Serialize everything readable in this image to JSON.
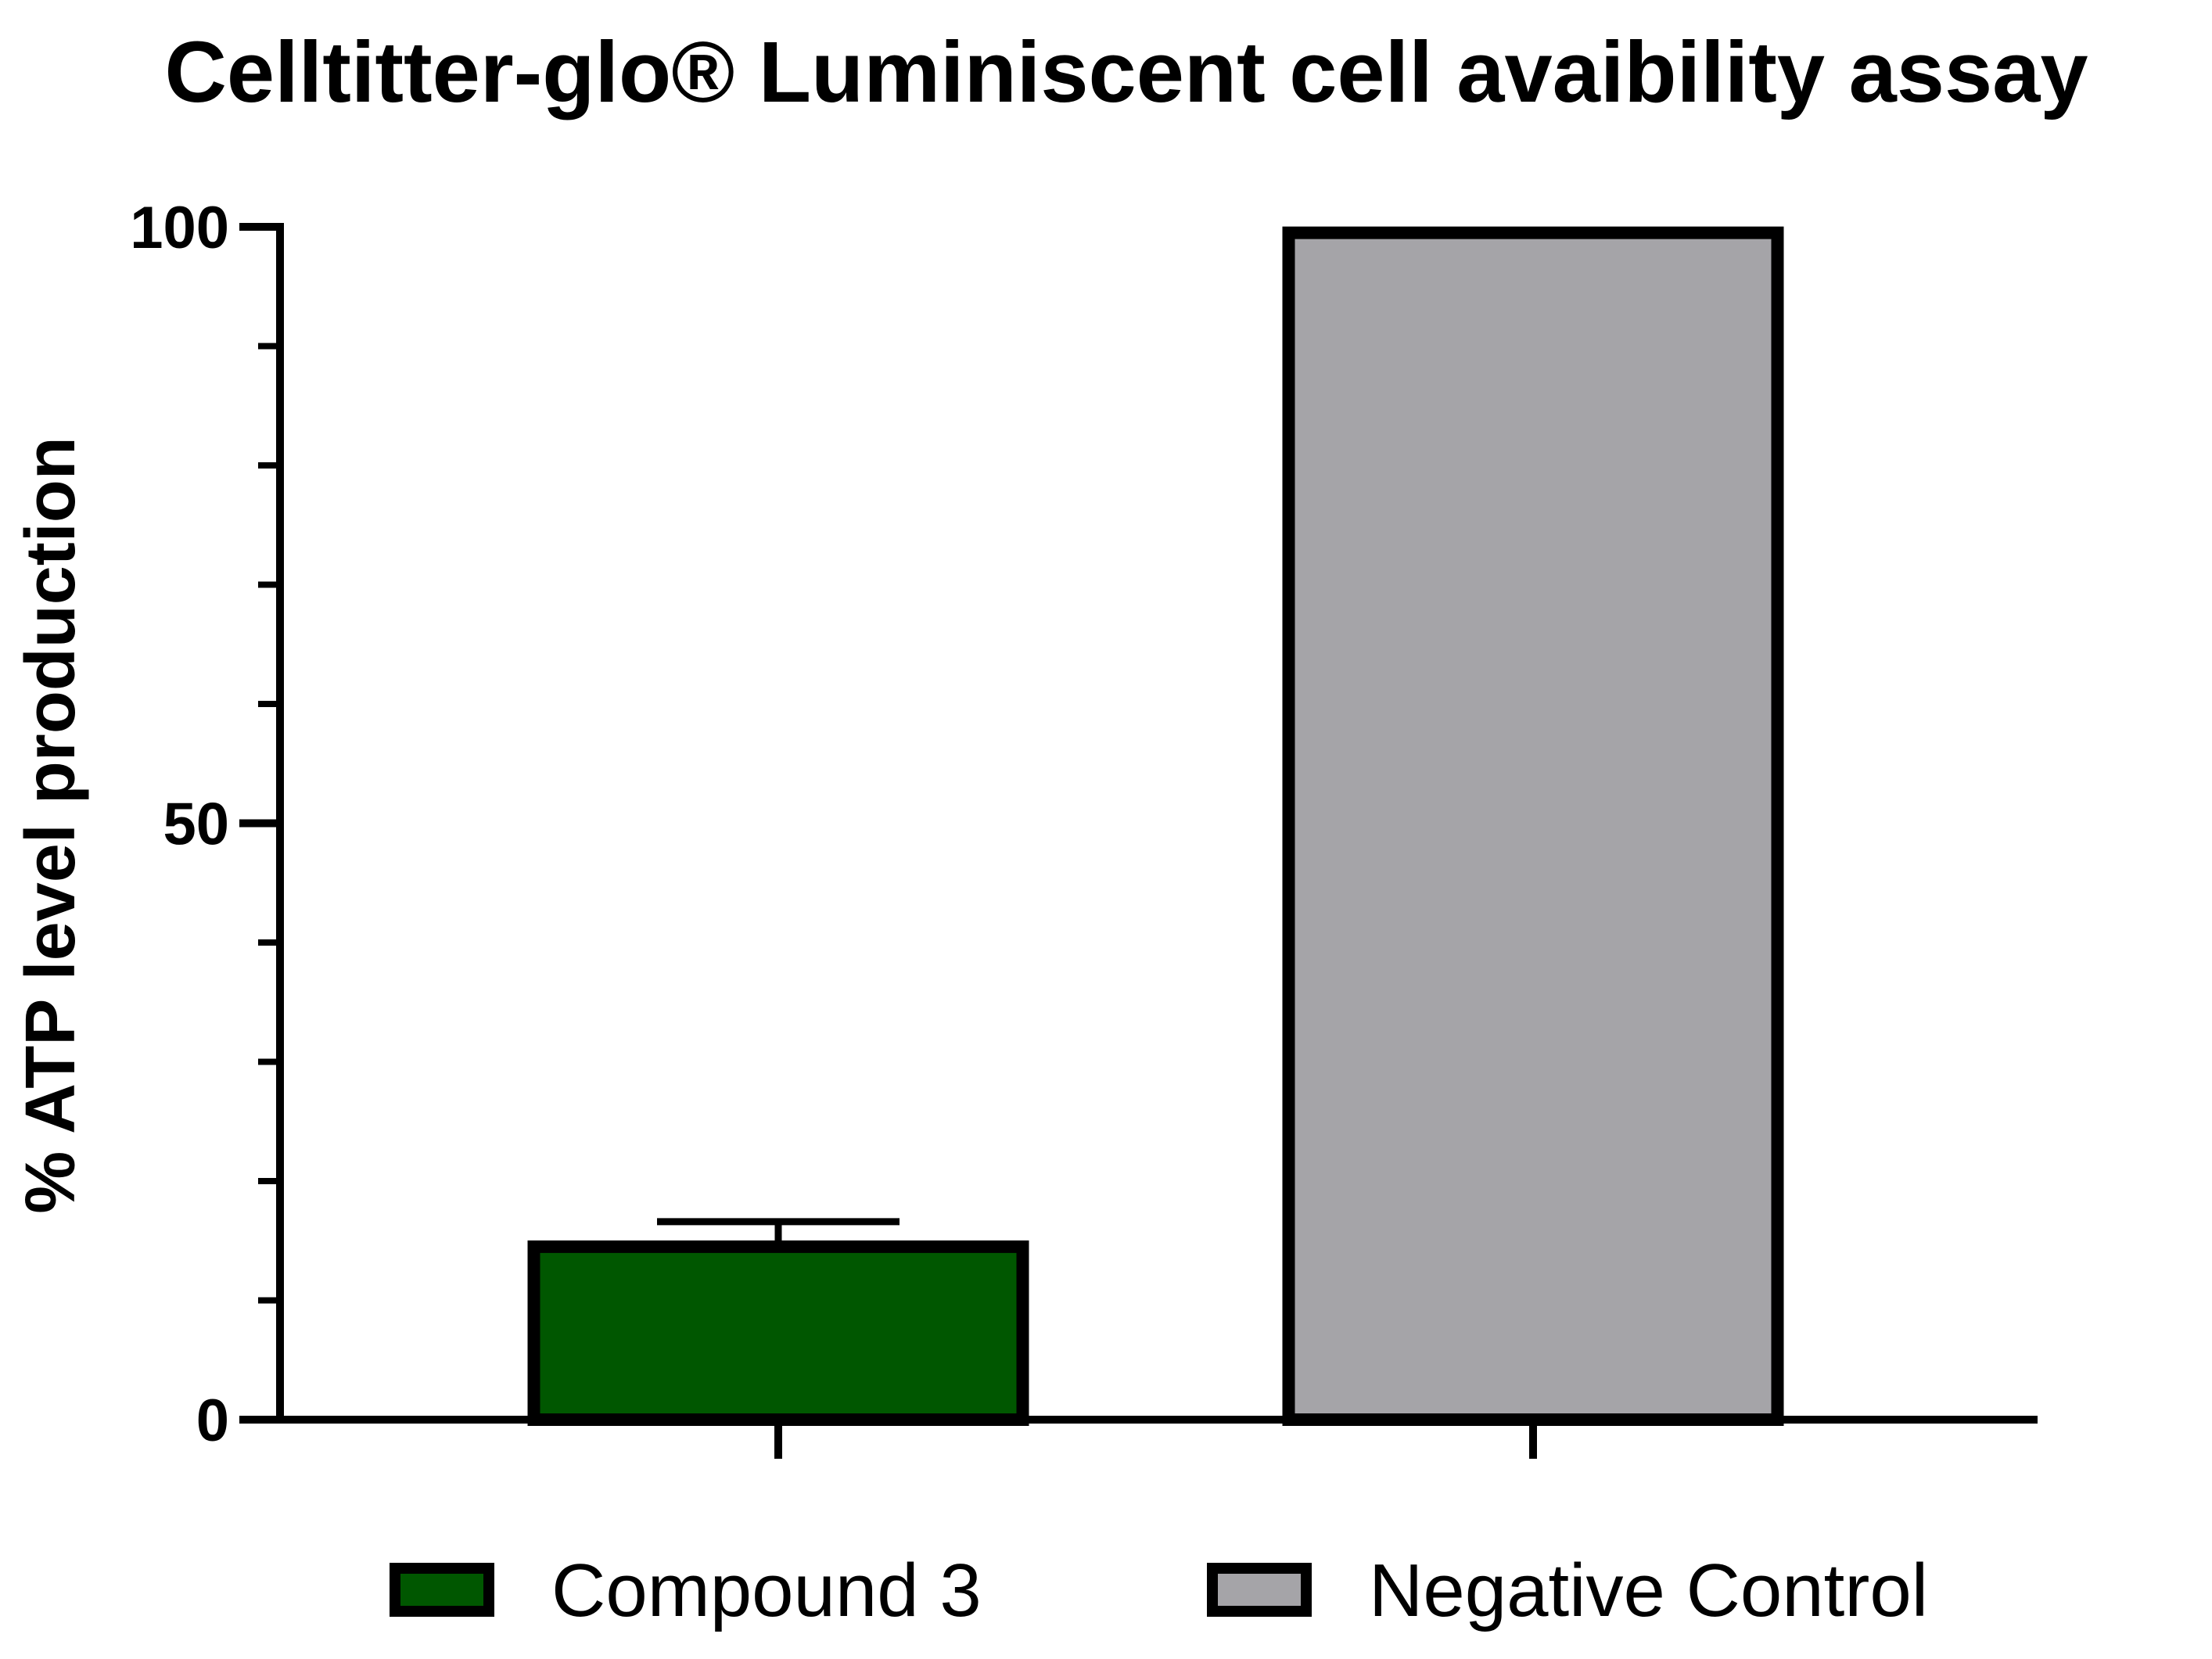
{
  "chart_data": {
    "type": "bar",
    "title": "Celltitter-glo® Luminiscent cell avaibility assay",
    "ylabel": "% ATP level production",
    "xlabel": "",
    "ylim": [
      0,
      100
    ],
    "yticks_major": [
      0,
      50,
      100
    ],
    "yticks_minor_step": 10,
    "categories": [
      "Compound 3",
      "Negative Control"
    ],
    "values": [
      14.5,
      99.5
    ],
    "error_upper": [
      2.1,
      0
    ],
    "colors": [
      "#005700",
      "#a5a4a8"
    ],
    "legend": {
      "position": "bottom",
      "entries": [
        "Compound 3",
        "Negative Control"
      ]
    },
    "grid": false
  }
}
